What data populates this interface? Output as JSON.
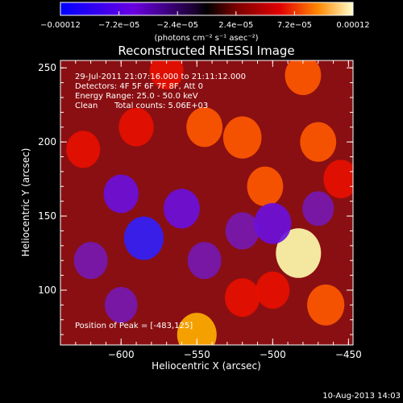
{
  "chart_data": {
    "type": "heatmap",
    "title": "Reconstructed RHESSI Image",
    "xlabel": "Heliocentric X (arcsec)",
    "ylabel": "Heliocentric Y (arcsec)",
    "xlim": [
      -640,
      -447
    ],
    "ylim": [
      63,
      255
    ],
    "x_ticks": [
      {
        "value": -600,
        "label": "−600"
      },
      {
        "value": -550,
        "label": "−550"
      },
      {
        "value": -500,
        "label": "−500"
      },
      {
        "value": -450,
        "label": "−450"
      }
    ],
    "y_ticks": [
      {
        "value": 100,
        "label": "100"
      },
      {
        "value": 150,
        "label": "150"
      },
      {
        "value": 200,
        "label": "200"
      },
      {
        "value": 250,
        "label": "250"
      }
    ],
    "colorbar": {
      "min": -0.00012,
      "max": 0.00012,
      "tick_labels": [
        {
          "value": -0.00012,
          "label": "−0.00012"
        },
        {
          "value": -7.2e-05,
          "label": "−7.2e−05"
        },
        {
          "value": -2.4e-05,
          "label": "−2.4e−05"
        },
        {
          "value": 2.4e-05,
          "label": "2.4e−05"
        },
        {
          "value": 7.2e-05,
          "label": "7.2e−05"
        },
        {
          "value": 0.00012,
          "label": "0.00012"
        }
      ],
      "unit_label": "(photons cm⁻² s⁻¹ asec⁻²)"
    },
    "annotations": [
      "29-Jul-2011 21:07:16.000 to 21:11:12.000",
      "Detectors: 4F 5F 6F 7F 8F, Att 0",
      "Energy Range: 25.0 - 50.0 keV",
      "Clean",
      "Total counts: 5.06E+03"
    ],
    "peak_label": "Position of Peak = [-483,125]",
    "features": [
      {
        "x": -483,
        "y": 125,
        "intensity": 1.0
      },
      {
        "x": -590,
        "y": 210,
        "intensity": 0.55
      },
      {
        "x": -545,
        "y": 210,
        "intensity": 0.6
      },
      {
        "x": -520,
        "y": 203,
        "intensity": 0.7
      },
      {
        "x": -480,
        "y": 245,
        "intensity": 0.6
      },
      {
        "x": -470,
        "y": 200,
        "intensity": 0.6
      },
      {
        "x": -455,
        "y": 175,
        "intensity": 0.55
      },
      {
        "x": -570,
        "y": 248,
        "intensity": 0.5
      },
      {
        "x": -625,
        "y": 195,
        "intensity": 0.5
      },
      {
        "x": -505,
        "y": 170,
        "intensity": 0.6
      },
      {
        "x": -465,
        "y": 90,
        "intensity": 0.65
      },
      {
        "x": -550,
        "y": 70,
        "intensity": 0.75
      },
      {
        "x": -520,
        "y": 95,
        "intensity": 0.55
      },
      {
        "x": -500,
        "y": 100,
        "intensity": 0.5
      },
      {
        "x": -600,
        "y": 165,
        "intensity": -0.55
      },
      {
        "x": -585,
        "y": 135,
        "intensity": -0.75
      },
      {
        "x": -620,
        "y": 120,
        "intensity": -0.5
      },
      {
        "x": -560,
        "y": 155,
        "intensity": -0.6
      },
      {
        "x": -545,
        "y": 120,
        "intensity": -0.5
      },
      {
        "x": -600,
        "y": 90,
        "intensity": -0.45
      },
      {
        "x": -520,
        "y": 140,
        "intensity": -0.5
      },
      {
        "x": -500,
        "y": 145,
        "intensity": -0.65
      },
      {
        "x": -470,
        "y": 155,
        "intensity": -0.4
      }
    ]
  },
  "footer": {
    "date_stamp": "10-Aug-2013 14:03"
  }
}
